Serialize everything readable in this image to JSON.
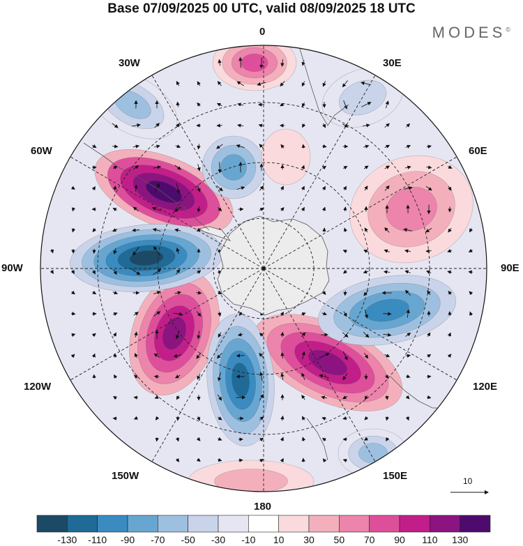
{
  "header": {
    "title": "Base 07/09/2025 00 UTC, valid 08/09/2025 18 UTC",
    "brand": "MODES",
    "brand_mark": "©"
  },
  "map": {
    "projection": "south polar stereographic",
    "longitude_labels": {
      "top": "0",
      "top_right": "30E",
      "upper_right": "60E",
      "right": "90E",
      "lower_right": "120E",
      "bottom_right": "150E",
      "bottom": "180",
      "bottom_left": "150W",
      "lower_left": "120W",
      "left": "90W",
      "upper_left": "60W",
      "top_left": "30W"
    },
    "vector_scale_label": "10"
  },
  "colorbar": {
    "colors": [
      "#1c4a66",
      "#1f6a97",
      "#3a8bc0",
      "#67a6d1",
      "#9ec0e0",
      "#c9d4ea",
      "#e6e6f3",
      "#ffffff",
      "#fadadd",
      "#f3b0bc",
      "#ec84ab",
      "#de4f9b",
      "#c21e89",
      "#8c1480",
      "#4e0b6e"
    ],
    "tick_labels": [
      "-130",
      "-110",
      "-90",
      "-70",
      "-50",
      "-30",
      "-10",
      "10",
      "30",
      "50",
      "70",
      "90",
      "110",
      "130"
    ]
  },
  "colors": {
    "land_outline": "#555555",
    "antarctica_fill": "#ececec",
    "grid": "#222222"
  }
}
